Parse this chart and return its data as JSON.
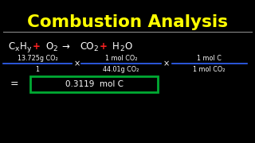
{
  "background_color": "#000000",
  "title": "Combustion Analysis",
  "title_color": "#FFFF00",
  "title_fontsize": 15.5,
  "separator_color": "#888888",
  "text_color": "#FFFFFF",
  "red_color": "#FF2222",
  "green_color": "#00BB33",
  "blue_line_color": "#3366FF",
  "result_box_color": "#00AA33",
  "mass_numerator": "13.725g CO₂",
  "mass_denominator": "1",
  "conv1_numerator": "1 mol CO₂",
  "conv1_denominator": "44.01g CO₂",
  "conv2_numerator": "1 mol C",
  "conv2_denominator": "1 mol CO₂",
  "result_text": "0.3119  mol C",
  "equals_text": "="
}
